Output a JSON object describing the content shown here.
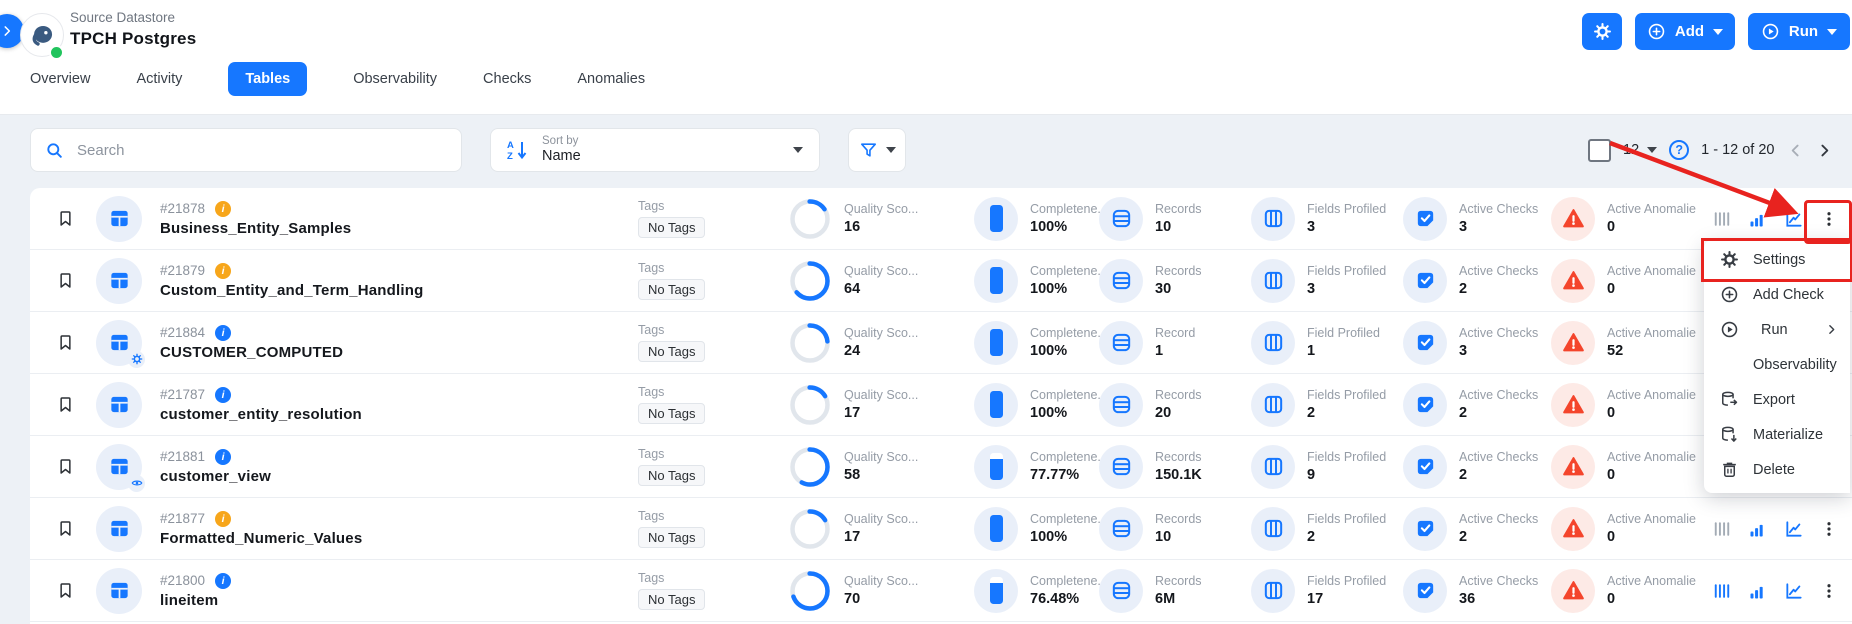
{
  "header": {
    "source_label": "Source Datastore",
    "title": "TPCH Postgres",
    "add_label": "Add",
    "run_label": "Run"
  },
  "tabs": [
    {
      "label": "Overview",
      "active": false
    },
    {
      "label": "Activity",
      "active": false
    },
    {
      "label": "Tables",
      "active": true
    },
    {
      "label": "Observability",
      "active": false
    },
    {
      "label": "Checks",
      "active": false
    },
    {
      "label": "Anomalies",
      "active": false
    }
  ],
  "toolbar": {
    "search_placeholder": "Search",
    "sort_label": "Sort by",
    "sort_value": "Name",
    "page_size": "12",
    "range": "1 - 12 of 20",
    "help_glyph": "?"
  },
  "icons": {
    "info_glyph": "i"
  },
  "table": {
    "rows": [
      {
        "id": "#21878",
        "info": "orange",
        "icon": "table",
        "name": "Business_Entity_Samples",
        "tags_label": "Tags",
        "tags_value": "No Tags",
        "quality_label": "Quality Sco...",
        "quality_value": "16",
        "quality_pct": 16,
        "completeness_label": "Completene...",
        "completeness_value": "100%",
        "completeness_pct": 100,
        "records_label": "Records",
        "records_value": "10",
        "fields_label": "Fields Profiled",
        "fields_value": "3",
        "checks_label": "Active Checks",
        "checks_value": "3",
        "anomalies_label": "Active Anomalie",
        "anomalies_value": "0",
        "bars_active": false
      },
      {
        "id": "#21879",
        "info": "orange",
        "icon": "table",
        "name": "Custom_Entity_and_Term_Handling",
        "tags_label": "Tags",
        "tags_value": "No Tags",
        "quality_label": "Quality Sco...",
        "quality_value": "64",
        "quality_pct": 64,
        "completeness_label": "Completene...",
        "completeness_value": "100%",
        "completeness_pct": 100,
        "records_label": "Records",
        "records_value": "30",
        "fields_label": "Fields Profiled",
        "fields_value": "3",
        "checks_label": "Active Checks",
        "checks_value": "2",
        "anomalies_label": "Active Anomalie",
        "anomalies_value": "0",
        "bars_active": false
      },
      {
        "id": "#21884",
        "info": "blue",
        "icon": "table-gear",
        "name": "CUSTOMER_COMPUTED",
        "tags_label": "Tags",
        "tags_value": "No Tags",
        "quality_label": "Quality Sco...",
        "quality_value": "24",
        "quality_pct": 24,
        "completeness_label": "Completene...",
        "completeness_value": "100%",
        "completeness_pct": 100,
        "records_label": "Record",
        "records_value": "1",
        "fields_label": "Field Profiled",
        "fields_value": "1",
        "checks_label": "Active Checks",
        "checks_value": "3",
        "anomalies_label": "Active Anomalie",
        "anomalies_value": "52",
        "bars_active": false
      },
      {
        "id": "#21787",
        "info": "blue",
        "icon": "table",
        "name": "customer_entity_resolution",
        "tags_label": "Tags",
        "tags_value": "No Tags",
        "quality_label": "Quality Sco...",
        "quality_value": "17",
        "quality_pct": 17,
        "completeness_label": "Completene...",
        "completeness_value": "100%",
        "completeness_pct": 100,
        "records_label": "Records",
        "records_value": "20",
        "fields_label": "Fields Profiled",
        "fields_value": "2",
        "checks_label": "Active Checks",
        "checks_value": "2",
        "anomalies_label": "Active Anomalie",
        "anomalies_value": "0",
        "bars_active": false
      },
      {
        "id": "#21881",
        "info": "blue",
        "icon": "table-eye",
        "name": "customer_view",
        "tags_label": "Tags",
        "tags_value": "No Tags",
        "quality_label": "Quality Sco...",
        "quality_value": "58",
        "quality_pct": 58,
        "completeness_label": "Completene...",
        "completeness_value": "77.77%",
        "completeness_pct": 77.77,
        "records_label": "Records",
        "records_value": "150.1K",
        "fields_label": "Fields Profiled",
        "fields_value": "9",
        "checks_label": "Active Checks",
        "checks_value": "2",
        "anomalies_label": "Active Anomalie",
        "anomalies_value": "0",
        "bars_active": false
      },
      {
        "id": "#21877",
        "info": "orange",
        "icon": "table",
        "name": "Formatted_Numeric_Values",
        "tags_label": "Tags",
        "tags_value": "No Tags",
        "quality_label": "Quality Sco...",
        "quality_value": "17",
        "quality_pct": 17,
        "completeness_label": "Completene...",
        "completeness_value": "100%",
        "completeness_pct": 100,
        "records_label": "Records",
        "records_value": "10",
        "fields_label": "Fields Profiled",
        "fields_value": "2",
        "checks_label": "Active Checks",
        "checks_value": "2",
        "anomalies_label": "Active Anomalie",
        "anomalies_value": "0",
        "bars_active": false
      },
      {
        "id": "#21800",
        "info": "blue",
        "icon": "table",
        "name": "lineitem",
        "tags_label": "Tags",
        "tags_value": "No Tags",
        "quality_label": "Quality Sco...",
        "quality_value": "70",
        "quality_pct": 70,
        "completeness_label": "Completene...",
        "completeness_value": "76.48%",
        "completeness_pct": 76.48,
        "records_label": "Records",
        "records_value": "6M",
        "fields_label": "Fields Profiled",
        "fields_value": "17",
        "checks_label": "Active Checks",
        "checks_value": "36",
        "anomalies_label": "Active Anomalie",
        "anomalies_value": "0",
        "bars_active": true
      }
    ]
  },
  "menu": {
    "items": [
      {
        "label": "Settings",
        "icon": "gear",
        "highlighted": true,
        "submenu": false
      },
      {
        "label": "Add Check",
        "icon": "plus-circle",
        "highlighted": false,
        "submenu": false
      },
      {
        "label": "Run",
        "icon": "play-circle",
        "highlighted": false,
        "submenu": true
      },
      {
        "label": "Observability",
        "icon": "line-chart",
        "highlighted": false,
        "submenu": false
      },
      {
        "label": "Export",
        "icon": "db-export",
        "highlighted": false,
        "submenu": false
      },
      {
        "label": "Materialize",
        "icon": "db-materialize",
        "highlighted": false,
        "submenu": false
      },
      {
        "label": "Delete",
        "icon": "trash",
        "highlighted": false,
        "submenu": false
      }
    ]
  },
  "colors": {
    "primary_blue": "#1677ff",
    "annotation_red": "#e8231f",
    "warning_red": "#f4452c",
    "info_orange": "#f7a61b",
    "status_green": "#21c45d"
  }
}
